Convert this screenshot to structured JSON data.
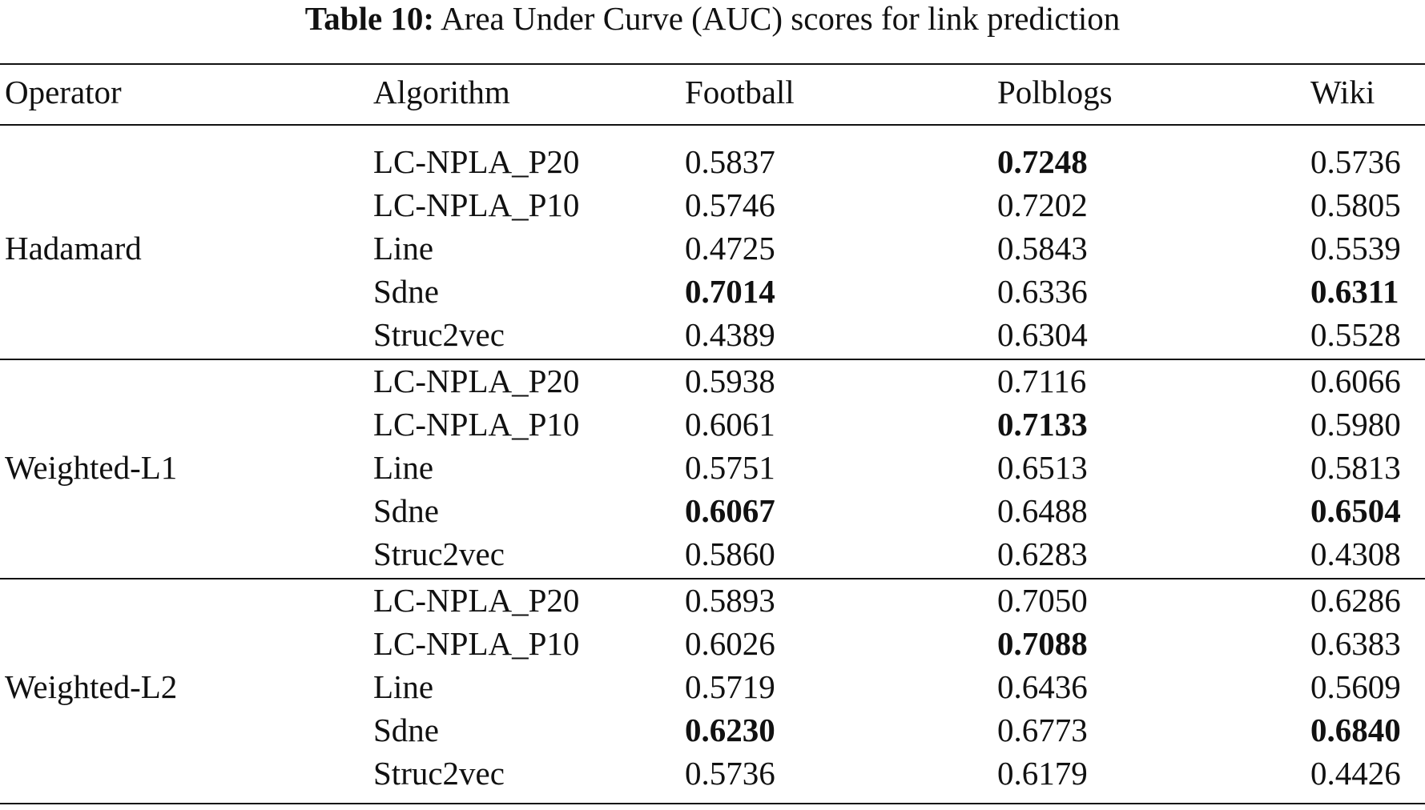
{
  "caption": {
    "label": "Table 10:",
    "text": "Area Under Curve (AUC) scores for link prediction"
  },
  "header": {
    "operator": "Operator",
    "algorithm": "Algorithm",
    "football": "Football",
    "polblogs": "Polblogs",
    "wiki": "Wiki"
  },
  "groups": [
    {
      "operator": "Hadamard",
      "rows": [
        {
          "algorithm": "LC-NPLA_P20",
          "football": "0.5837",
          "polblogs": "0.7248",
          "wiki": "0.5736",
          "bold": [
            "polblogs"
          ]
        },
        {
          "algorithm": "LC-NPLA_P10",
          "football": "0.5746",
          "polblogs": "0.7202",
          "wiki": "0.5805",
          "bold": []
        },
        {
          "algorithm": "Line",
          "football": "0.4725",
          "polblogs": "0.5843",
          "wiki": "0.5539",
          "bold": []
        },
        {
          "algorithm": "Sdne",
          "football": "0.7014",
          "polblogs": "0.6336",
          "wiki": "0.6311",
          "bold": [
            "football",
            "wiki"
          ]
        },
        {
          "algorithm": "Struc2vec",
          "football": "0.4389",
          "polblogs": "0.6304",
          "wiki": "0.5528",
          "bold": []
        }
      ]
    },
    {
      "operator": "Weighted-L1",
      "rows": [
        {
          "algorithm": "LC-NPLA_P20",
          "football": "0.5938",
          "polblogs": "0.7116",
          "wiki": "0.6066",
          "bold": []
        },
        {
          "algorithm": "LC-NPLA_P10",
          "football": "0.6061",
          "polblogs": "0.7133",
          "wiki": "0.5980",
          "bold": [
            "polblogs"
          ]
        },
        {
          "algorithm": "Line",
          "football": "0.5751",
          "polblogs": "0.6513",
          "wiki": "0.5813",
          "bold": []
        },
        {
          "algorithm": "Sdne",
          "football": "0.6067",
          "polblogs": "0.6488",
          "wiki": "0.6504",
          "bold": [
            "football",
            "wiki"
          ]
        },
        {
          "algorithm": "Struc2vec",
          "football": "0.5860",
          "polblogs": "0.6283",
          "wiki": "0.4308",
          "bold": []
        }
      ]
    },
    {
      "operator": "Weighted-L2",
      "rows": [
        {
          "algorithm": "LC-NPLA_P20",
          "football": "0.5893",
          "polblogs": "0.7050",
          "wiki": "0.6286",
          "bold": []
        },
        {
          "algorithm": "LC-NPLA_P10",
          "football": "0.6026",
          "polblogs": "0.7088",
          "wiki": "0.6383",
          "bold": [
            "polblogs"
          ]
        },
        {
          "algorithm": "Line",
          "football": "0.5719",
          "polblogs": "0.6436",
          "wiki": "0.5609",
          "bold": []
        },
        {
          "algorithm": "Sdne",
          "football": "0.6230",
          "polblogs": "0.6773",
          "wiki": "0.6840",
          "bold": [
            "football",
            "wiki"
          ]
        },
        {
          "algorithm": "Struc2vec",
          "football": "0.5736",
          "polblogs": "0.6179",
          "wiki": "0.4426",
          "bold": []
        }
      ]
    }
  ]
}
